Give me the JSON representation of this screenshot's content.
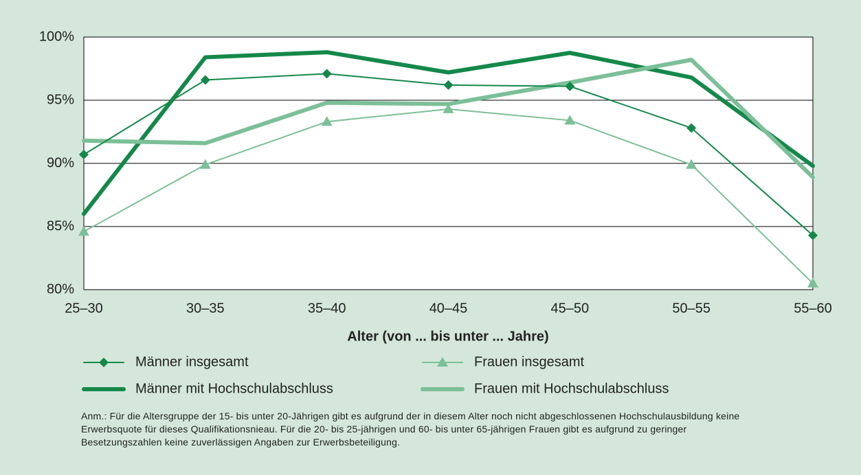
{
  "chart_data": {
    "type": "line",
    "x_label": "Alter (von ... bis unter ... Jahre)",
    "categories": [
      "25–30",
      "30–35",
      "35–40",
      "40–45",
      "45–50",
      "50–55",
      "55–60"
    ],
    "ylim": [
      80,
      100
    ],
    "yticks": [
      {
        "value": 80,
        "label": "80%"
      },
      {
        "value": 85,
        "label": "85%"
      },
      {
        "value": 90,
        "label": "90%"
      },
      {
        "value": 95,
        "label": "95%"
      },
      {
        "value": 100,
        "label": "100%"
      }
    ],
    "grid": true,
    "series": [
      {
        "name": "Männer insgesamt",
        "color": "#14884a",
        "width": 2,
        "marker": "diamond",
        "values": [
          90.7,
          96.6,
          97.1,
          96.2,
          96.1,
          92.8,
          84.3
        ]
      },
      {
        "name": "Männer mit Hochschulabschluss",
        "color": "#14884a",
        "width": 6,
        "marker": null,
        "values": [
          86.0,
          98.4,
          98.8,
          97.2,
          98.75,
          96.8,
          89.8
        ]
      },
      {
        "name": "Frauen insgesamt",
        "color": "#7cbf98",
        "width": 2,
        "marker": "triangle",
        "values": [
          84.6,
          89.9,
          93.3,
          94.3,
          93.4,
          89.9,
          80.5
        ]
      },
      {
        "name": "Frauen mit Hochschulabschluss",
        "color": "#7cbf98",
        "width": 6,
        "marker": null,
        "values": [
          91.8,
          91.6,
          94.8,
          94.7,
          96.4,
          98.2,
          88.9
        ]
      }
    ]
  },
  "note": "Anm.: Für die Altersgruppe der 15- bis unter 20-Jährigen gibt es aufgrund der in diesem Alter noch nicht abgeschlossenen Hochschulausbildung keine Erwerbsquote für dieses Qualifikationsnieau. Für die 20- bis 25-jährigen und 60- bis unter 65-jährigen Frauen gibt es aufgrund zu geringer Besetzungszahlen keine zuverlässigen Angaben zur Erwerbsbeteiligung."
}
